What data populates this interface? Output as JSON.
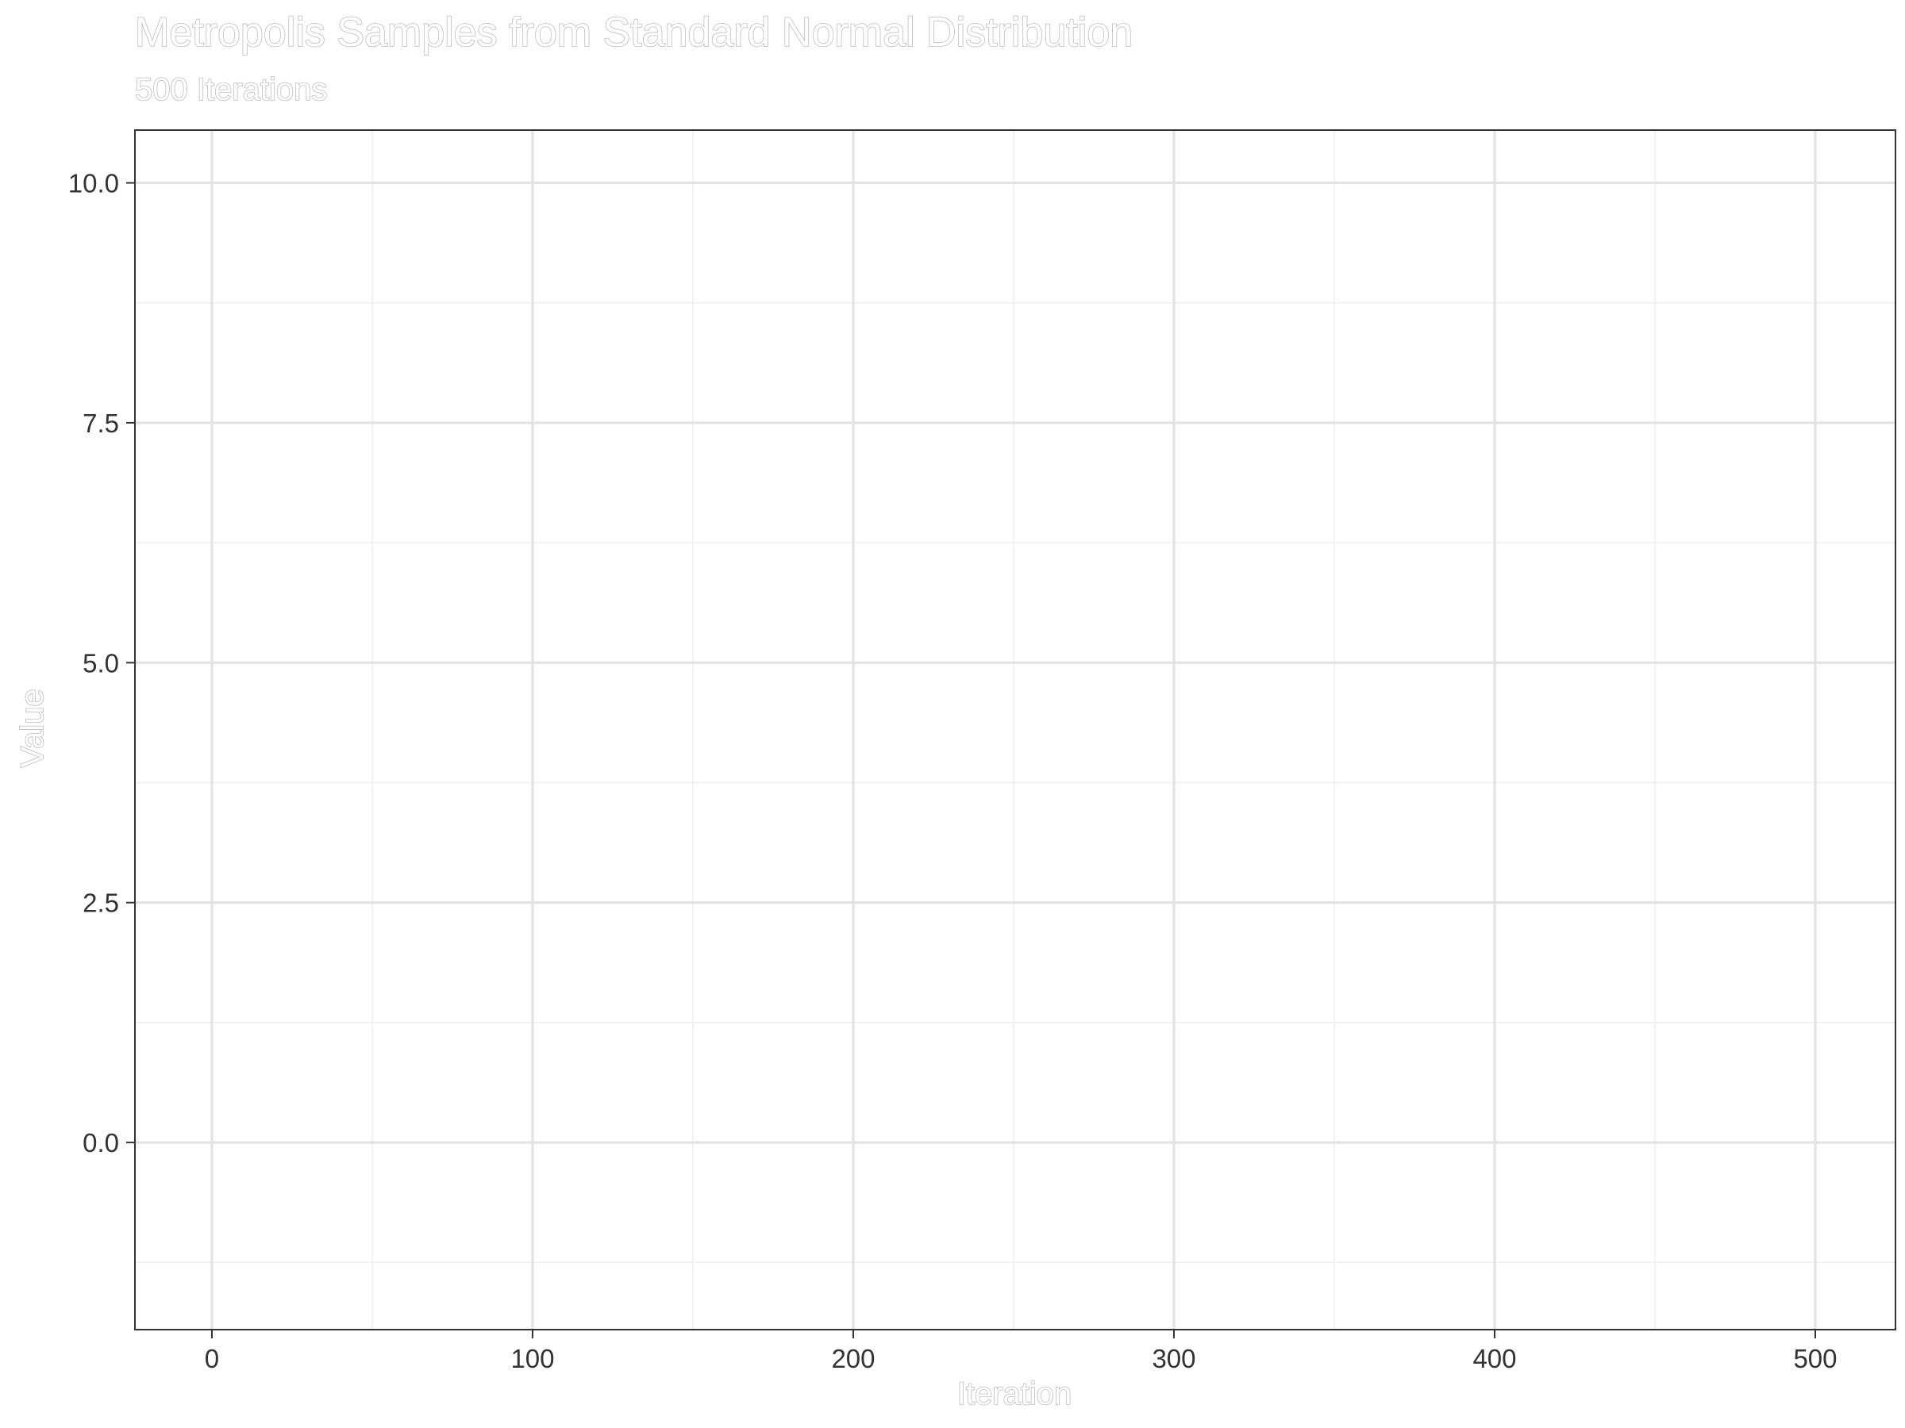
{
  "chart_data": {
    "type": "line",
    "title": "Metropolis Samples from Standard Normal Distribution",
    "subtitle": "500 Iterations",
    "xlabel": "Iteration",
    "ylabel": "Value",
    "xlim": [
      -24,
      525
    ],
    "ylim": [
      -1.95,
      10.55
    ],
    "x_ticks": [
      0,
      100,
      200,
      300,
      400,
      500
    ],
    "x_tick_labels": [
      "0",
      "100",
      "200",
      "300",
      "400",
      "500"
    ],
    "x_minor_ticks": [
      50,
      150,
      250,
      350,
      450
    ],
    "y_ticks": [
      0,
      2.5,
      5,
      7.5,
      10
    ],
    "y_tick_labels": [
      "0.0",
      "2.5",
      "5.0",
      "7.5",
      "10.0"
    ],
    "y_minor_ticks": [
      -1.25,
      1.25,
      3.75,
      6.25,
      8.75
    ],
    "grid": true,
    "series": []
  },
  "colors": {
    "grid_major": "#e3e3e3",
    "grid_minor": "#efefef",
    "panel_border": "#333333",
    "ghost_text_stroke": "#bdbdbd",
    "tick_text": "#333333"
  }
}
